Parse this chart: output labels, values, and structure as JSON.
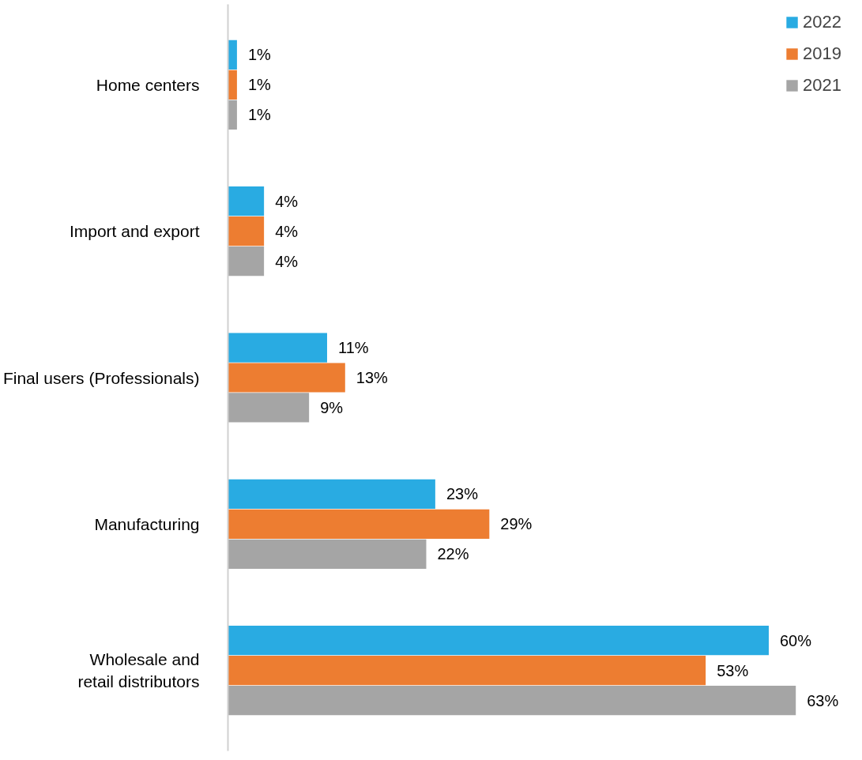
{
  "chart_data": {
    "type": "bar",
    "orientation": "horizontal",
    "categories": [
      "Home centers",
      "Import and export",
      "Final users (Professionals)",
      "Manufacturing",
      "Wholesale and\nretail distributors"
    ],
    "series": [
      {
        "name": "2022",
        "color": "#29abe2",
        "values": [
          1,
          4,
          11,
          23,
          60
        ],
        "value_labels": [
          "1%",
          "4%",
          "11%",
          "23%",
          "60%"
        ]
      },
      {
        "name": "2019",
        "color": "#ed7d31",
        "values": [
          1,
          4,
          13,
          29,
          53
        ],
        "value_labels": [
          "1%",
          "4%",
          "13%",
          "29%",
          "53%"
        ]
      },
      {
        "name": "2021",
        "color": "#a5a5a5",
        "values": [
          1,
          4,
          9,
          22,
          63
        ],
        "value_labels": [
          "1%",
          "4%",
          "9%",
          "22%",
          "63%"
        ]
      }
    ],
    "legend": "top right",
    "grid": false
  }
}
